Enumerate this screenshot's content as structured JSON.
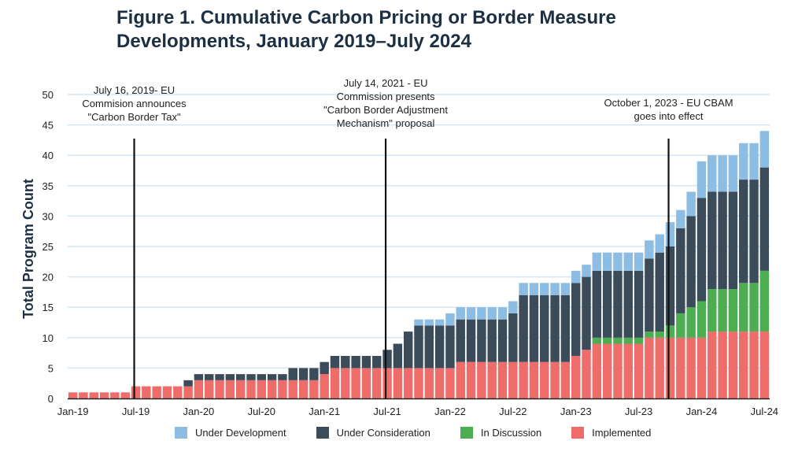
{
  "title_line1": "Figure 1.  Cumulative Carbon Pricing or Border Measure",
  "title_line2": "Developments, January 2019–July 2024",
  "colors": {
    "Under Development": "#8dbde3",
    "Under Consideration": "#3b4b5a",
    "In Discussion": "#4cad51",
    "Implemented": "#ee6c69",
    "gridline": "#d4e6f3",
    "axis": "#222222",
    "event_line": "#111111"
  },
  "chart_data": {
    "type": "bar",
    "stacked": true,
    "title": "Cumulative Carbon Pricing or Border Measure Developments, January 2019–July 2024",
    "xlabel": "",
    "ylabel": "Total Program Count",
    "ylim": [
      0,
      50
    ],
    "yticks": [
      0,
      5,
      10,
      15,
      20,
      25,
      30,
      35,
      40,
      45,
      50
    ],
    "grid": true,
    "legend_position": "bottom",
    "x_tick_labels": [
      "Jan-19",
      "Jul-19",
      "Jan-20",
      "Jul-20",
      "Jan-21",
      "Jul-21",
      "Jan-22",
      "Jul-22",
      "Jan-23",
      "Jul-23",
      "Jan-24",
      "Jul-24"
    ],
    "x_tick_index": [
      0,
      6,
      12,
      18,
      24,
      30,
      36,
      42,
      48,
      54,
      60,
      66
    ],
    "categories": [
      "2019-01",
      "2019-02",
      "2019-03",
      "2019-04",
      "2019-05",
      "2019-06",
      "2019-07",
      "2019-08",
      "2019-09",
      "2019-10",
      "2019-11",
      "2019-12",
      "2020-01",
      "2020-02",
      "2020-03",
      "2020-04",
      "2020-05",
      "2020-06",
      "2020-07",
      "2020-08",
      "2020-09",
      "2020-10",
      "2020-11",
      "2020-12",
      "2021-01",
      "2021-02",
      "2021-03",
      "2021-04",
      "2021-05",
      "2021-06",
      "2021-07",
      "2021-08",
      "2021-09",
      "2021-10",
      "2021-11",
      "2021-12",
      "2022-01",
      "2022-02",
      "2022-03",
      "2022-04",
      "2022-05",
      "2022-06",
      "2022-07",
      "2022-08",
      "2022-09",
      "2022-10",
      "2022-11",
      "2022-12",
      "2023-01",
      "2023-02",
      "2023-03",
      "2023-04",
      "2023-05",
      "2023-06",
      "2023-07",
      "2023-08",
      "2023-09",
      "2023-10",
      "2023-11",
      "2023-12",
      "2024-01",
      "2024-02",
      "2024-03",
      "2024-04",
      "2024-05",
      "2024-06",
      "2024-07"
    ],
    "series": [
      {
        "name": "Implemented",
        "values": [
          1,
          1,
          1,
          1,
          1,
          1,
          2,
          2,
          2,
          2,
          2,
          2,
          3,
          3,
          3,
          3,
          3,
          3,
          3,
          3,
          3,
          3,
          3,
          3,
          4,
          5,
          5,
          5,
          5,
          5,
          5,
          5,
          5,
          5,
          5,
          5,
          5,
          6,
          6,
          6,
          6,
          6,
          6,
          6,
          6,
          6,
          6,
          6,
          7,
          8,
          9,
          9,
          9,
          9,
          9,
          10,
          10,
          10,
          10,
          10,
          10,
          11,
          11,
          11,
          11,
          11,
          11
        ]
      },
      {
        "name": "In Discussion",
        "values": [
          0,
          0,
          0,
          0,
          0,
          0,
          0,
          0,
          0,
          0,
          0,
          0,
          0,
          0,
          0,
          0,
          0,
          0,
          0,
          0,
          0,
          0,
          0,
          0,
          0,
          0,
          0,
          0,
          0,
          0,
          0,
          0,
          0,
          0,
          0,
          0,
          0,
          0,
          0,
          0,
          0,
          0,
          0,
          0,
          0,
          0,
          0,
          0,
          0,
          0,
          1,
          1,
          1,
          1,
          1,
          1,
          1,
          2,
          4,
          5,
          6,
          7,
          7,
          7,
          8,
          8,
          10
        ]
      },
      {
        "name": "Under Consideration",
        "values": [
          0,
          0,
          0,
          0,
          0,
          0,
          0,
          0,
          0,
          0,
          0,
          1,
          1,
          1,
          1,
          1,
          1,
          1,
          1,
          1,
          1,
          2,
          2,
          2,
          2,
          2,
          2,
          2,
          2,
          2,
          3,
          4,
          6,
          7,
          7,
          7,
          7,
          7,
          7,
          7,
          7,
          7,
          8,
          11,
          11,
          11,
          11,
          11,
          12,
          12,
          11,
          11,
          11,
          11,
          11,
          12,
          13,
          13,
          14,
          15,
          17,
          16,
          16,
          16,
          17,
          17,
          17
        ]
      },
      {
        "name": "Under Development",
        "values": [
          0,
          0,
          0,
          0,
          0,
          0,
          0,
          0,
          0,
          0,
          0,
          0,
          0,
          0,
          0,
          0,
          0,
          0,
          0,
          0,
          0,
          0,
          0,
          0,
          0,
          0,
          0,
          0,
          0,
          0,
          0,
          0,
          0,
          1,
          1,
          1,
          2,
          2,
          2,
          2,
          2,
          2,
          2,
          2,
          2,
          2,
          2,
          2,
          2,
          2,
          3,
          3,
          3,
          3,
          3,
          3,
          3,
          4,
          3,
          4,
          6,
          6,
          6,
          6,
          6,
          6,
          6
        ]
      }
    ],
    "legend_order": [
      "Under Development",
      "Under Consideration",
      "In Discussion",
      "Implemented"
    ],
    "annotations": [
      {
        "index": 6,
        "lines": [
          "July 16, 2019- EU",
          "Commision announces",
          "\"Carbon Border Tax\""
        ]
      },
      {
        "index": 30,
        "lines": [
          "July 14, 2021 - EU",
          "Commission presents",
          "\"Carbon Border Adjustment",
          "Mechanism\" proposal"
        ]
      },
      {
        "index": 57,
        "lines": [
          "October 1, 2023 -  EU CBAM",
          "goes into effect"
        ]
      }
    ]
  }
}
